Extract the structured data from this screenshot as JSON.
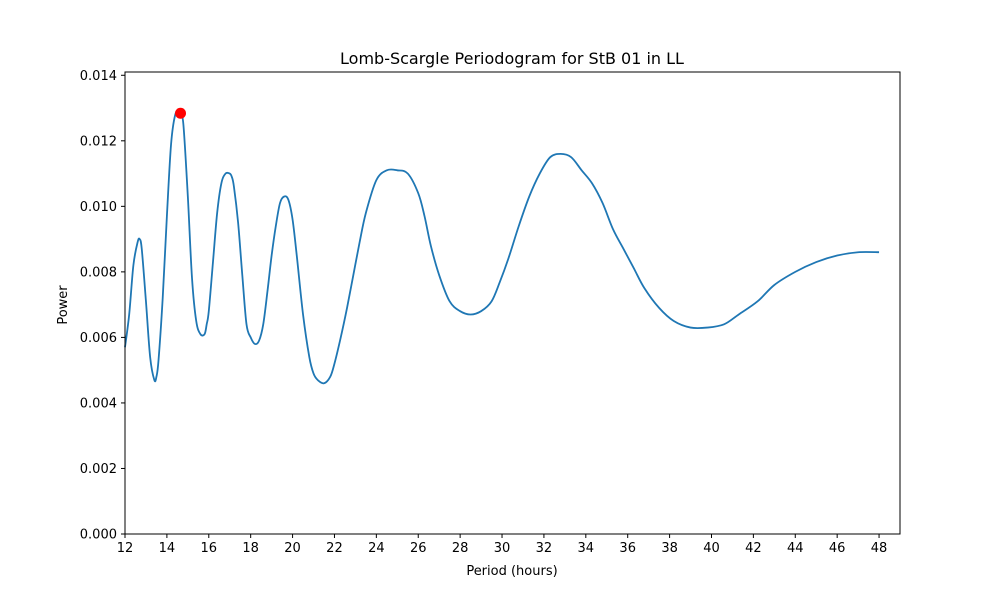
{
  "chart_data": {
    "type": "line",
    "title": "Lomb-Scargle Periodogram for StB 01 in LL",
    "xlabel": "Period (hours)",
    "ylabel": "Power",
    "xlim": [
      12,
      49
    ],
    "ylim": [
      0,
      0.0141
    ],
    "xticks": [
      "12",
      "14",
      "16",
      "18",
      "20",
      "22",
      "24",
      "26",
      "28",
      "30",
      "32",
      "34",
      "36",
      "38",
      "40",
      "42",
      "44",
      "46",
      "48"
    ],
    "yticks": [
      "0.000",
      "0.002",
      "0.004",
      "0.006",
      "0.008",
      "0.010",
      "0.012",
      "0.014"
    ],
    "grid": false,
    "line_color": "#1f77b4",
    "peak_color": "#ff0000",
    "series": [
      {
        "x": [
          12.0,
          12.2,
          12.4,
          12.6,
          12.7,
          12.8,
          13.0,
          13.2,
          13.4,
          13.5,
          13.6,
          13.8,
          14.0,
          14.2,
          14.4,
          14.6,
          14.7,
          14.8,
          15.0,
          15.2,
          15.4,
          15.6,
          15.8,
          15.9,
          16.0,
          16.2,
          16.4,
          16.6,
          16.8,
          17.0,
          17.1,
          17.2,
          17.4,
          17.6,
          17.8,
          18.0,
          18.2,
          18.4,
          18.6,
          18.8,
          19.0,
          19.2,
          19.4,
          19.6,
          19.8,
          20.0,
          20.2,
          20.5,
          20.8,
          21.0,
          21.2,
          21.5,
          21.8,
          22.0,
          22.3,
          22.6,
          22.9,
          23.2,
          23.5,
          24.0,
          24.5,
          25.0,
          25.5,
          26.0,
          26.3,
          26.6,
          27.0,
          27.5,
          28.0,
          28.5,
          29.0,
          29.5,
          29.9,
          30.3,
          30.8,
          31.3,
          31.8,
          32.3,
          32.8,
          33.3,
          33.8,
          34.3,
          34.8,
          35.3,
          35.8,
          36.3,
          36.8,
          37.5,
          38.2,
          39.0,
          39.8,
          40.6,
          41.3,
          42.2,
          43.0,
          44.0,
          45.0,
          46.0,
          47.0,
          48.0
        ],
        "y": [
          0.0057,
          0.0067,
          0.0082,
          0.0089,
          0.009,
          0.0087,
          0.0071,
          0.0054,
          0.0047,
          0.0048,
          0.0053,
          0.0072,
          0.0097,
          0.0119,
          0.0128,
          0.0129,
          0.0128,
          0.0124,
          0.0103,
          0.0078,
          0.0065,
          0.0061,
          0.0061,
          0.0064,
          0.0068,
          0.0083,
          0.0098,
          0.0107,
          0.011,
          0.011,
          0.0109,
          0.0106,
          0.0095,
          0.0079,
          0.0064,
          0.006,
          0.0058,
          0.0059,
          0.0064,
          0.0074,
          0.0085,
          0.0094,
          0.0101,
          0.0103,
          0.0102,
          0.0096,
          0.0085,
          0.0067,
          0.0054,
          0.0049,
          0.0047,
          0.0046,
          0.0048,
          0.0052,
          0.006,
          0.0069,
          0.0079,
          0.0089,
          0.0098,
          0.0108,
          0.0111,
          0.0111,
          0.011,
          0.0104,
          0.0097,
          0.0088,
          0.0079,
          0.0071,
          0.0068,
          0.0067,
          0.0068,
          0.0071,
          0.0077,
          0.0084,
          0.0094,
          0.0103,
          0.011,
          0.0115,
          0.0116,
          0.0115,
          0.0111,
          0.0107,
          0.0101,
          0.0093,
          0.0087,
          0.0081,
          0.0075,
          0.0069,
          0.0065,
          0.0063,
          0.0063,
          0.0064,
          0.0067,
          0.0071,
          0.0076,
          0.008,
          0.0083,
          0.0085,
          0.0086,
          0.0086
        ]
      }
    ],
    "peak": {
      "x": 14.65,
      "y": 0.01284
    }
  }
}
